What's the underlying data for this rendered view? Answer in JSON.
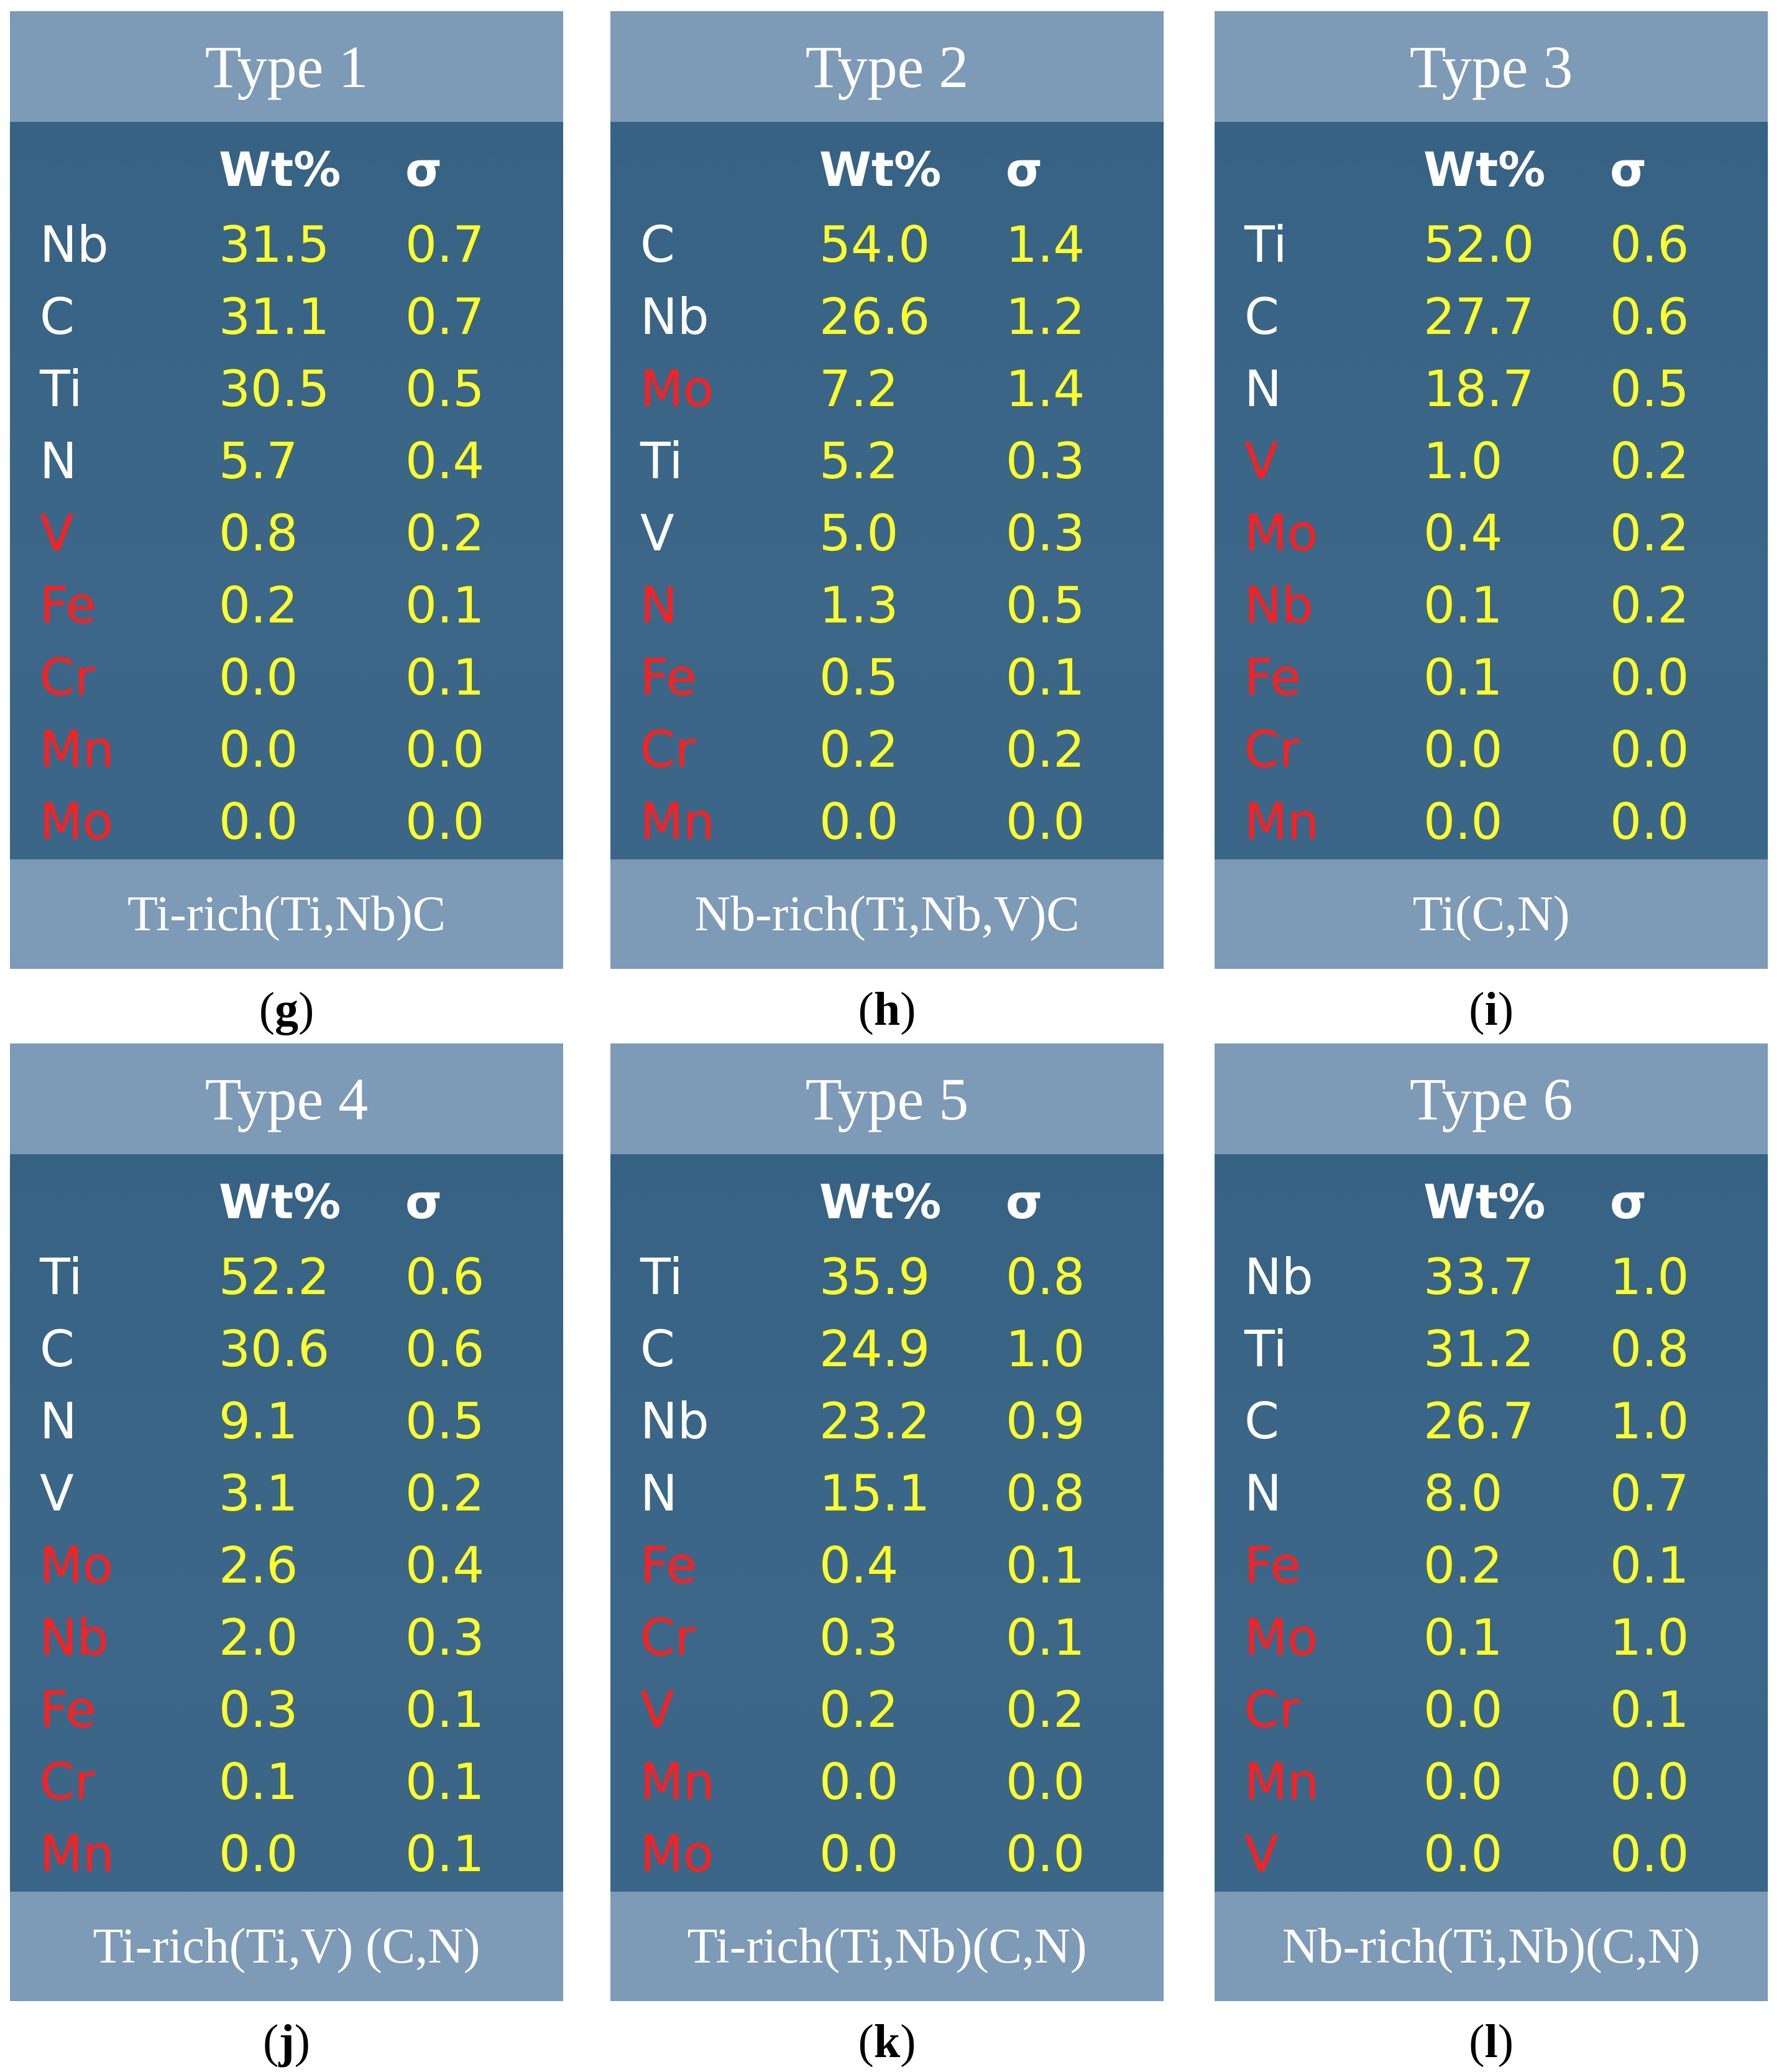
{
  "panels": [
    {
      "title": "Type 1",
      "col_wt": "Wt%",
      "col_sigma": "σ",
      "rows": [
        {
          "el": "Nb",
          "wt": "31.5",
          "sigma": "0.7",
          "minor": false
        },
        {
          "el": "C",
          "wt": "31.1",
          "sigma": "0.7",
          "minor": false
        },
        {
          "el": "Ti",
          "wt": "30.5",
          "sigma": "0.5",
          "minor": false
        },
        {
          "el": "N",
          "wt": "5.7",
          "sigma": "0.4",
          "minor": false
        },
        {
          "el": "V",
          "wt": "0.8",
          "sigma": "0.2",
          "minor": true
        },
        {
          "el": "Fe",
          "wt": "0.2",
          "sigma": "0.1",
          "minor": true
        },
        {
          "el": "Cr",
          "wt": "0.0",
          "sigma": "0.1",
          "minor": true
        },
        {
          "el": "Mn",
          "wt": "0.0",
          "sigma": "0.0",
          "minor": true
        },
        {
          "el": "Mo",
          "wt": "0.0",
          "sigma": "0.0",
          "minor": true
        }
      ],
      "footer": "Ti-rich(Ti,Nb)C",
      "caption_open": "(",
      "caption_letter": "g",
      "caption_close": ")"
    },
    {
      "title": "Type 2",
      "col_wt": "Wt%",
      "col_sigma": "σ",
      "rows": [
        {
          "el": "C",
          "wt": "54.0",
          "sigma": "1.4",
          "minor": false
        },
        {
          "el": "Nb",
          "wt": "26.6",
          "sigma": "1.2",
          "minor": false
        },
        {
          "el": "Mo",
          "wt": "7.2",
          "sigma": "1.4",
          "minor": true
        },
        {
          "el": "Ti",
          "wt": "5.2",
          "sigma": "0.3",
          "minor": false
        },
        {
          "el": "V",
          "wt": "5.0",
          "sigma": "0.3",
          "minor": false
        },
        {
          "el": "N",
          "wt": "1.3",
          "sigma": "0.5",
          "minor": true
        },
        {
          "el": "Fe",
          "wt": "0.5",
          "sigma": "0.1",
          "minor": true
        },
        {
          "el": "Cr",
          "wt": "0.2",
          "sigma": "0.2",
          "minor": true
        },
        {
          "el": "Mn",
          "wt": "0.0",
          "sigma": "0.0",
          "minor": true
        }
      ],
      "footer": "Nb-rich(Ti,Nb,V)C",
      "caption_open": "(",
      "caption_letter": "h",
      "caption_close": ")"
    },
    {
      "title": "Type 3",
      "col_wt": "Wt%",
      "col_sigma": "σ",
      "rows": [
        {
          "el": "Ti",
          "wt": "52.0",
          "sigma": "0.6",
          "minor": false
        },
        {
          "el": "C",
          "wt": "27.7",
          "sigma": "0.6",
          "minor": false
        },
        {
          "el": "N",
          "wt": "18.7",
          "sigma": "0.5",
          "minor": false
        },
        {
          "el": "V",
          "wt": "1.0",
          "sigma": "0.2",
          "minor": true
        },
        {
          "el": "Mo",
          "wt": "0.4",
          "sigma": "0.2",
          "minor": true
        },
        {
          "el": "Nb",
          "wt": "0.1",
          "sigma": "0.2",
          "minor": true
        },
        {
          "el": "Fe",
          "wt": "0.1",
          "sigma": "0.0",
          "minor": true
        },
        {
          "el": "Cr",
          "wt": "0.0",
          "sigma": "0.0",
          "minor": true
        },
        {
          "el": "Mn",
          "wt": "0.0",
          "sigma": "0.0",
          "minor": true
        }
      ],
      "footer": "Ti(C,N)",
      "caption_open": "(",
      "caption_letter": "i",
      "caption_close": ")"
    },
    {
      "title": "Type 4",
      "col_wt": "Wt%",
      "col_sigma": "σ",
      "rows": [
        {
          "el": "Ti",
          "wt": "52.2",
          "sigma": "0.6",
          "minor": false
        },
        {
          "el": "C",
          "wt": "30.6",
          "sigma": "0.6",
          "minor": false
        },
        {
          "el": "N",
          "wt": "9.1",
          "sigma": "0.5",
          "minor": false
        },
        {
          "el": "V",
          "wt": "3.1",
          "sigma": "0.2",
          "minor": false
        },
        {
          "el": "Mo",
          "wt": "2.6",
          "sigma": "0.4",
          "minor": true
        },
        {
          "el": "Nb",
          "wt": "2.0",
          "sigma": "0.3",
          "minor": true
        },
        {
          "el": "Fe",
          "wt": "0.3",
          "sigma": "0.1",
          "minor": true
        },
        {
          "el": "Cr",
          "wt": "0.1",
          "sigma": "0.1",
          "minor": true
        },
        {
          "el": "Mn",
          "wt": "0.0",
          "sigma": "0.1",
          "minor": true
        }
      ],
      "footer": "Ti-rich(Ti,V) (C,N)",
      "caption_open": "(",
      "caption_letter": "j",
      "caption_close": ")"
    },
    {
      "title": "Type 5",
      "col_wt": "Wt%",
      "col_sigma": "σ",
      "rows": [
        {
          "el": "Ti",
          "wt": "35.9",
          "sigma": "0.8",
          "minor": false
        },
        {
          "el": "C",
          "wt": "24.9",
          "sigma": "1.0",
          "minor": false
        },
        {
          "el": "Nb",
          "wt": "23.2",
          "sigma": "0.9",
          "minor": false
        },
        {
          "el": "N",
          "wt": "15.1",
          "sigma": "0.8",
          "minor": false
        },
        {
          "el": "Fe",
          "wt": "0.4",
          "sigma": "0.1",
          "minor": true
        },
        {
          "el": "Cr",
          "wt": "0.3",
          "sigma": "0.1",
          "minor": true
        },
        {
          "el": "V",
          "wt": "0.2",
          "sigma": "0.2",
          "minor": true
        },
        {
          "el": "Mn",
          "wt": "0.0",
          "sigma": "0.0",
          "minor": true
        },
        {
          "el": "Mo",
          "wt": "0.0",
          "sigma": "0.0",
          "minor": true
        }
      ],
      "footer": "Ti-rich(Ti,Nb)(C,N)",
      "caption_open": "(",
      "caption_letter": "k",
      "caption_close": ")"
    },
    {
      "title": "Type 6",
      "col_wt": "Wt%",
      "col_sigma": "σ",
      "rows": [
        {
          "el": "Nb",
          "wt": "33.7",
          "sigma": "1.0",
          "minor": false
        },
        {
          "el": "Ti",
          "wt": "31.2",
          "sigma": "0.8",
          "minor": false
        },
        {
          "el": "C",
          "wt": "26.7",
          "sigma": "1.0",
          "minor": false
        },
        {
          "el": "N",
          "wt": "8.0",
          "sigma": "0.7",
          "minor": false
        },
        {
          "el": "Fe",
          "wt": "0.2",
          "sigma": "0.1",
          "minor": true
        },
        {
          "el": "Mo",
          "wt": "0.1",
          "sigma": "1.0",
          "minor": true
        },
        {
          "el": "Cr",
          "wt": "0.0",
          "sigma": "0.1",
          "minor": true
        },
        {
          "el": "Mn",
          "wt": "0.0",
          "sigma": "0.0",
          "minor": true
        },
        {
          "el": "V",
          "wt": "0.0",
          "sigma": "0.0",
          "minor": true
        }
      ],
      "footer": "Nb-rich(Ti,Nb)(C,N)",
      "caption_open": "(",
      "caption_letter": "l",
      "caption_close": ")"
    }
  ],
  "colors": {
    "panel_bg": "#3a6588",
    "header_bg": "#7d9ab6",
    "major_element": "#ffffff",
    "minor_element": "#ff1f1f",
    "value": "#ffff2a"
  }
}
